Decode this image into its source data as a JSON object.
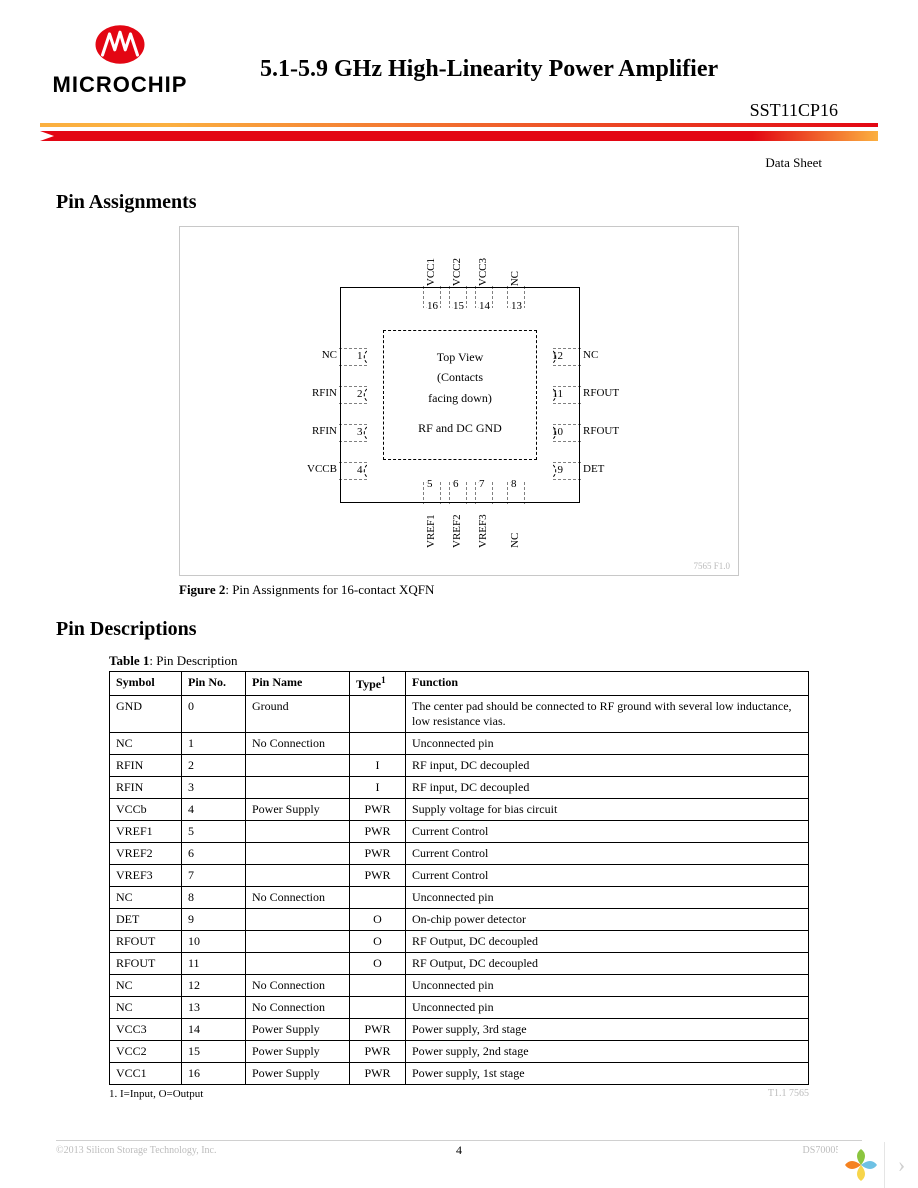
{
  "header": {
    "brand": "MICROCHIP",
    "logo_color": "#e30613",
    "title": "5.1-5.9 GHz High-Linearity Power Amplifier",
    "part_number": "SST11CP16",
    "bar_color_1": "#fbb040",
    "bar_color_2": "#e30613",
    "data_sheet_label": "Data Sheet"
  },
  "sections": {
    "pin_assignments_heading": "Pin Assignments",
    "pin_descriptions_heading": "Pin Descriptions"
  },
  "figure": {
    "center_line1": "Top View",
    "center_line2": "(Contacts",
    "center_line3": "facing down)",
    "center_line4": "RF and DC GND",
    "caption_lead": "Figure 2",
    "caption_rest": ": Pin Assignments for 16-contact XQFN",
    "silicon_note": "7565 F1.0",
    "left_pins": [
      {
        "num": "1",
        "label": "NC"
      },
      {
        "num": "2",
        "label": "RFIN"
      },
      {
        "num": "3",
        "label": "RFIN"
      },
      {
        "num": "4",
        "label": "VCCB"
      }
    ],
    "right_pins": [
      {
        "num": "12",
        "label": "NC"
      },
      {
        "num": "11",
        "label": "RFOUT"
      },
      {
        "num": "10",
        "label": "RFOUT"
      },
      {
        "num": "9",
        "label": "DET"
      }
    ],
    "top_pins": [
      {
        "num": "16",
        "label": "VCC1"
      },
      {
        "num": "15",
        "label": "VCC2"
      },
      {
        "num": "14",
        "label": "VCC3"
      },
      {
        "num": "13",
        "label": "NC"
      }
    ],
    "bottom_pins": [
      {
        "num": "5",
        "label": "VREF1"
      },
      {
        "num": "6",
        "label": "VREF2"
      },
      {
        "num": "7",
        "label": "VREF3"
      },
      {
        "num": "8",
        "label": "NC"
      }
    ]
  },
  "table": {
    "caption_lead": "Table 1",
    "caption_rest": ": Pin Description",
    "columns": [
      "Symbol",
      "Pin No.",
      "Pin Name",
      "Type",
      "Function"
    ],
    "type_footnote_marker": "1",
    "rows": [
      {
        "symbol": "GND",
        "pin": "0",
        "name": "Ground",
        "type": "",
        "func": "The center pad should be connected to RF ground with several low inductance, low resistance vias."
      },
      {
        "symbol": "NC",
        "pin": "1",
        "name": "No Connection",
        "type": "",
        "func": "Unconnected pin"
      },
      {
        "symbol": "RFIN",
        "pin": "2",
        "name": "",
        "type": "I",
        "func": "RF input, DC decoupled"
      },
      {
        "symbol": "RFIN",
        "pin": "3",
        "name": "",
        "type": "I",
        "func": "RF input, DC decoupled"
      },
      {
        "symbol": "VCCb",
        "pin": "4",
        "name": "Power Supply",
        "type": "PWR",
        "func": "Supply voltage for bias circuit"
      },
      {
        "symbol": "VREF1",
        "pin": "5",
        "name": "",
        "type": "PWR",
        "func": "Current Control"
      },
      {
        "symbol": "VREF2",
        "pin": "6",
        "name": "",
        "type": "PWR",
        "func": "Current Control"
      },
      {
        "symbol": "VREF3",
        "pin": "7",
        "name": "",
        "type": "PWR",
        "func": "Current Control"
      },
      {
        "symbol": "NC",
        "pin": "8",
        "name": "No Connection",
        "type": "",
        "func": "Unconnected pin"
      },
      {
        "symbol": "DET",
        "pin": "9",
        "name": "",
        "type": "O",
        "func": "On-chip power detector"
      },
      {
        "symbol": "RFOUT",
        "pin": "10",
        "name": "",
        "type": "O",
        "func": "RF Output, DC decoupled"
      },
      {
        "symbol": "RFOUT",
        "pin": "11",
        "name": "",
        "type": "O",
        "func": "RF Output, DC decoupled"
      },
      {
        "symbol": "NC",
        "pin": "12",
        "name": "No Connection",
        "type": "",
        "func": "Unconnected pin"
      },
      {
        "symbol": "NC",
        "pin": "13",
        "name": "No Connection",
        "type": "",
        "func": "Unconnected pin"
      },
      {
        "symbol": "VCC3",
        "pin": "14",
        "name": "Power Supply",
        "type": "PWR",
        "func": "Power supply, 3rd stage"
      },
      {
        "symbol": "VCC2",
        "pin": "15",
        "name": "Power Supply",
        "type": "PWR",
        "func": "Power supply, 2nd stage"
      },
      {
        "symbol": "VCC1",
        "pin": "16",
        "name": "Power Supply",
        "type": "PWR",
        "func": "Power supply, 1st stage"
      }
    ],
    "footnote": "1. I=Input, O=Output",
    "table_id": "T1.1 7565"
  },
  "footer": {
    "copyright": "©2013 Silicon Storage Technology, Inc.",
    "page_number": "4",
    "doc_id": "DS70005050B"
  },
  "corner": {
    "petal_colors": [
      "#8bc53f",
      "#6ec1e4",
      "#f7d54a",
      "#f58220"
    ]
  }
}
